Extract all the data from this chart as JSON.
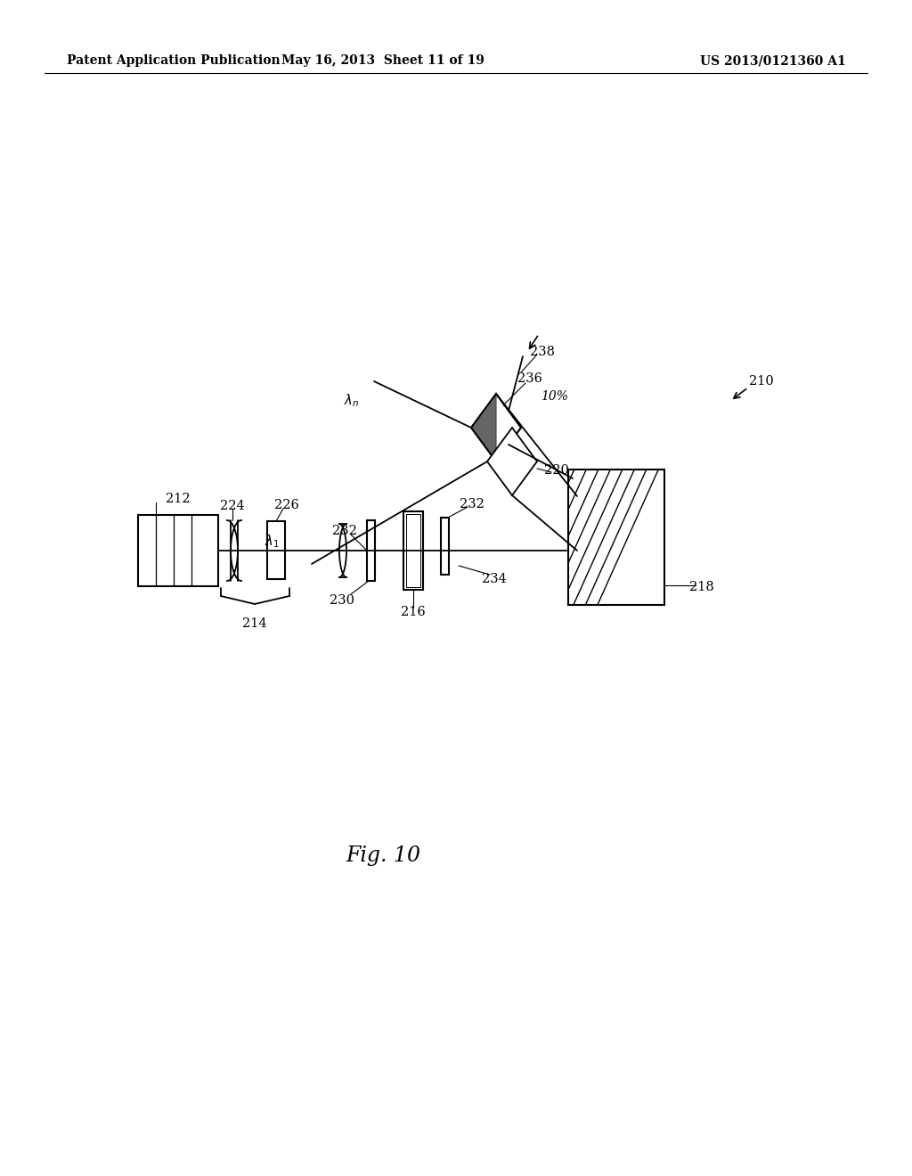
{
  "background_color": "#ffffff",
  "header_left": "Patent Application Publication",
  "header_center": "May 16, 2013  Sheet 11 of 19",
  "header_right": "US 2013/0121360 A1",
  "fig_label": "Fig. 10",
  "page_width": 1.0,
  "page_height": 1.0
}
